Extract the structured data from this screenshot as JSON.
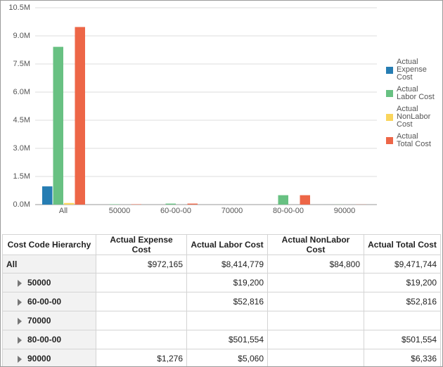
{
  "chart_data": {
    "type": "bar",
    "categories": [
      "All",
      "50000",
      "60-00-00",
      "70000",
      "80-00-00",
      "90000"
    ],
    "series": [
      {
        "name": "Actual Expense Cost",
        "color": "#267db3",
        "values": [
          972165,
          null,
          null,
          null,
          null,
          1276
        ],
        "value_labels": [
          "$972,165",
          null,
          null,
          null,
          null,
          "$1,276"
        ]
      },
      {
        "name": "Actual Labor Cost",
        "color": "#68c182",
        "values": [
          8414779,
          19200,
          52816,
          null,
          501554,
          5060
        ],
        "value_labels": [
          "$8,414,779",
          "$19,200",
          "$52,816",
          null,
          "$501,554",
          "$5,060"
        ]
      },
      {
        "name": "Actual NonLabor Cost",
        "color": "#fad55c",
        "values": [
          84800,
          null,
          null,
          null,
          null,
          null
        ],
        "value_labels": [
          "$84,800",
          null,
          null,
          null,
          null,
          null
        ]
      },
      {
        "name": "Actual Total Cost",
        "color": "#ed6647",
        "values": [
          9471744,
          19200,
          52816,
          null,
          501554,
          6336
        ],
        "value_labels": [
          "$9,471,744",
          "$19,200",
          "$52,816",
          null,
          "$501,554",
          "$6,336"
        ]
      }
    ],
    "ylim": [
      0,
      10500000
    ],
    "yticks": [
      {
        "value": 0,
        "label": "0.0M"
      },
      {
        "value": 1500000,
        "label": "1.5M"
      },
      {
        "value": 3000000,
        "label": "3.0M"
      },
      {
        "value": 4500000,
        "label": "4.5M"
      },
      {
        "value": 6000000,
        "label": "6.0M"
      },
      {
        "value": 7500000,
        "label": "7.5M"
      },
      {
        "value": 9000000,
        "label": "9.0M"
      },
      {
        "value": 10500000,
        "label": "10.5M"
      }
    ],
    "grid": true,
    "legend": "right"
  },
  "table": {
    "corner_header": "Cost Code Hierarchy"
  }
}
